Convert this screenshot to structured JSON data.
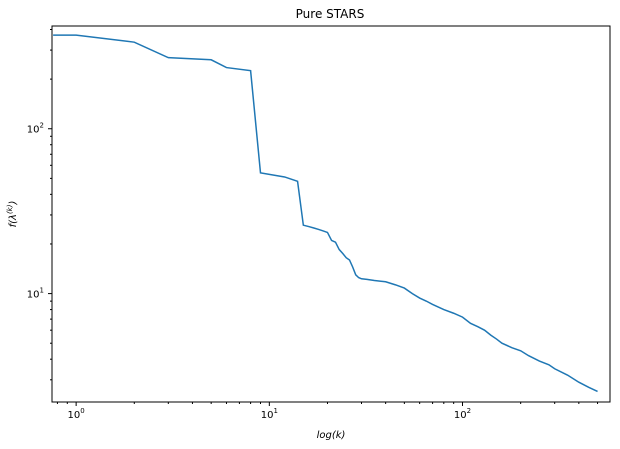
{
  "chart_data": {
    "type": "line",
    "title": "Pure STARS",
    "xlabel": "log(k)",
    "ylabel": "f(λ^(k))",
    "xscale": "log",
    "yscale": "log",
    "xlim": [
      0.75,
      580
    ],
    "ylim": [
      2.2,
      420
    ],
    "grid": false,
    "line_color": "#1f77b4",
    "x_ticks": [
      {
        "value": 1,
        "base": "10",
        "exp": "0"
      },
      {
        "value": 10,
        "base": "10",
        "exp": "1"
      },
      {
        "value": 100,
        "base": "10",
        "exp": "2"
      }
    ],
    "y_ticks": [
      {
        "value": 10,
        "base": "10",
        "exp": "1"
      },
      {
        "value": 100,
        "base": "10",
        "exp": "2"
      }
    ],
    "series": [
      {
        "x": [
          0.76,
          1,
          2,
          3,
          5,
          6,
          8,
          9,
          12,
          14,
          15,
          16,
          17,
          18,
          19,
          20,
          21,
          22,
          23,
          24,
          25,
          26,
          27,
          28,
          29,
          30,
          32,
          35,
          40,
          45,
          50,
          55,
          60,
          65,
          70,
          80,
          90,
          100,
          110,
          120,
          130,
          140,
          150,
          160,
          180,
          200,
          220,
          250,
          280,
          300,
          350,
          400,
          450,
          500
        ],
        "y": [
          370,
          370,
          335,
          270,
          262,
          235,
          225,
          54,
          51,
          48,
          26,
          25.5,
          25,
          24.5,
          24,
          23.5,
          21,
          20.5,
          18.5,
          17.5,
          16.5,
          16,
          14.5,
          13,
          12.5,
          12.3,
          12.2,
          12.0,
          11.8,
          11.3,
          10.8,
          10.0,
          9.4,
          9.0,
          8.6,
          8.0,
          7.6,
          7.2,
          6.6,
          6.3,
          6.0,
          5.6,
          5.3,
          5.0,
          4.7,
          4.5,
          4.2,
          3.9,
          3.7,
          3.5,
          3.2,
          2.9,
          2.7,
          2.55
        ]
      }
    ]
  }
}
